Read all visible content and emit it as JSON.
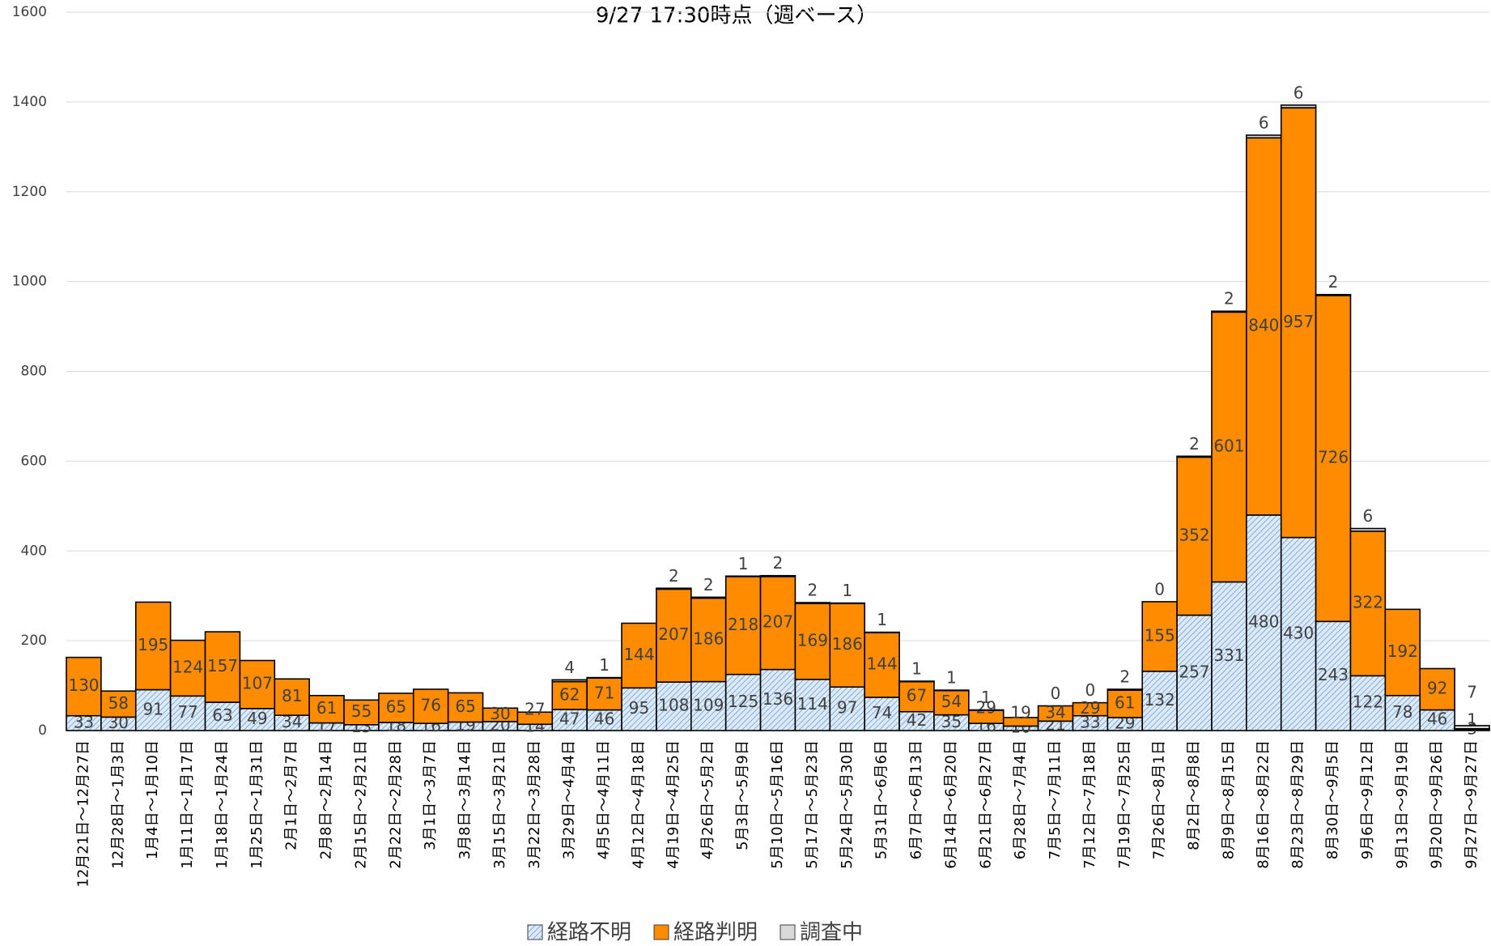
{
  "chart_data": {
    "type": "stacked_bar",
    "title": "9/27 17:30時点（週ベース）",
    "categories": [
      "12月21日～12月27日",
      "12月28日～1月3日",
      "1月4日～1月10日",
      "1月11日～1月17日",
      "1月18日～1月24日",
      "1月25日～1月31日",
      "2月1日～2月7日",
      "2月8日～2月14日",
      "2月15日～2月21日",
      "2月22日～2月28日",
      "3月1日～3月7日",
      "3月8日～3月14日",
      "3月15日～3月21日",
      "3月22日～3月28日",
      "3月29日～4月4日",
      "4月5日～4月11日",
      "4月12日～4月18日",
      "4月19日～4月25日",
      "4月26日～5月2日",
      "5月3日～5月9日",
      "5月10日～5月16日",
      "5月17日～5月23日",
      "5月24日～5月30日",
      "5月31日～6月6日",
      "6月7日～6月13日",
      "6月14日～6月20日",
      "6月21日～6月27日",
      "6月28日～7月4日",
      "7月5日～7月11日",
      "7月12日～7月18日",
      "7月19日～7月25日",
      "7月26日～8月1日",
      "8月2日～8月8日",
      "8月9日～8月15日",
      "8月16日～8月22日",
      "8月23日～8月29日",
      "8月30日～9月5日",
      "9月6日～9月12日",
      "9月13日～9月19日",
      "9月20日～9月26日",
      "9月27日～9月27日"
    ],
    "series": [
      {
        "name": "経路不明",
        "color": "#dde9f6",
        "values": [
          33,
          30,
          91,
          77,
          63,
          49,
          34,
          17,
          13,
          18,
          16,
          19,
          20,
          14,
          47,
          46,
          95,
          108,
          109,
          125,
          136,
          114,
          97,
          74,
          42,
          35,
          16,
          10,
          21,
          33,
          29,
          132,
          257,
          331,
          480,
          430,
          243,
          122,
          78,
          46,
          3
        ]
      },
      {
        "name": "経路判明",
        "color": "#ff8c00",
        "values": [
          130,
          58,
          195,
          124,
          157,
          107,
          81,
          61,
          55,
          65,
          76,
          65,
          30,
          27,
          62,
          71,
          144,
          207,
          186,
          218,
          207,
          169,
          186,
          144,
          67,
          54,
          29,
          19,
          34,
          29,
          61,
          155,
          352,
          601,
          840,
          957,
          726,
          322,
          192,
          92,
          1
        ]
      },
      {
        "name": "調査中",
        "color": "#d9d9d9",
        "values": [
          null,
          null,
          null,
          null,
          null,
          null,
          null,
          null,
          null,
          null,
          null,
          null,
          null,
          null,
          4,
          1,
          null,
          2,
          2,
          1,
          2,
          2,
          1,
          1,
          1,
          1,
          1,
          null,
          0,
          0,
          2,
          0,
          2,
          2,
          6,
          6,
          2,
          6,
          null,
          null,
          7
        ]
      }
    ],
    "ylim": [
      0,
      1600
    ],
    "yticks": [
      0,
      200,
      400,
      600,
      800,
      1000,
      1200,
      1400,
      1600
    ],
    "grid": true,
    "legend": "bottom"
  }
}
